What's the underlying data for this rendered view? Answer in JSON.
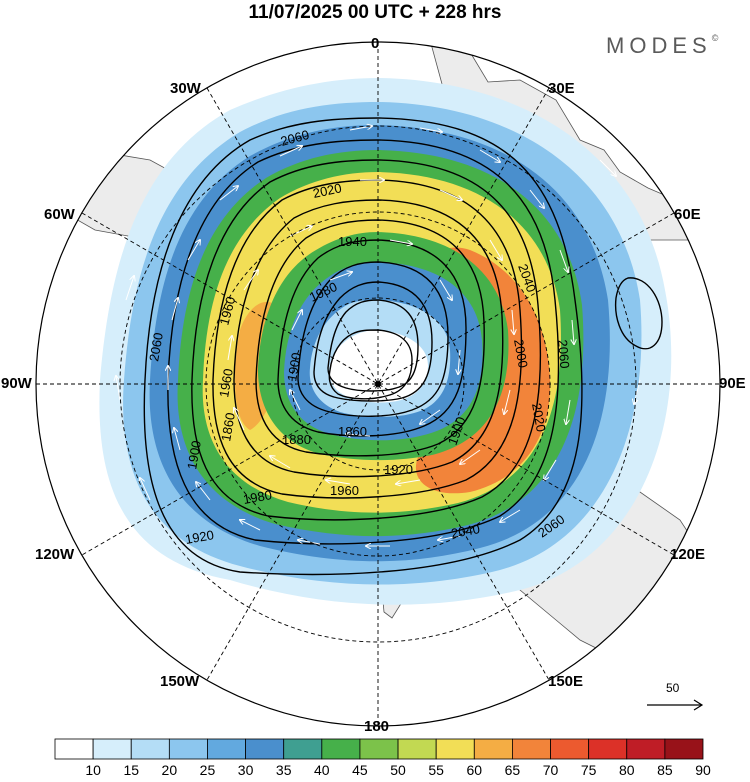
{
  "title": "11/07/2025  00 UTC  + 228 hrs",
  "brand": {
    "name": "MODES",
    "mark": "©"
  },
  "longitude_labels": {
    "top": "0",
    "e30": "30E",
    "e60": "60E",
    "e90": "90E",
    "e120": "120E",
    "e150": "150E",
    "bottom": "180",
    "w150": "150W",
    "w120": "120W",
    "w90": "90W",
    "w60": "60W",
    "w30": "30W"
  },
  "contour_labels": [
    "2060",
    "2020",
    "1940",
    "1980",
    "1860",
    "1900",
    "1920",
    "1960",
    "1980",
    "2040",
    "2060",
    "2000",
    "2020",
    "2040",
    "2060",
    "2060",
    "1960",
    "1960",
    "1900",
    "1880",
    "1860",
    "1900",
    "1920"
  ],
  "colorbar": {
    "ticks": [
      "10",
      "15",
      "20",
      "25",
      "30",
      "35",
      "40",
      "45",
      "50",
      "55",
      "60",
      "65",
      "70",
      "75",
      "80",
      "85",
      "90"
    ],
    "colors": [
      "#ffffff",
      "#d6eefb",
      "#b4ddf6",
      "#8cc6ee",
      "#62a9df",
      "#4a8fcd",
      "#3f9f91",
      "#46b04a",
      "#7cc24a",
      "#c2d952",
      "#f2de56",
      "#f4ad44",
      "#f2843a",
      "#ec5a2f",
      "#dc3128",
      "#bf1d26",
      "#981219"
    ]
  },
  "vector_reference": {
    "label": "50"
  }
}
